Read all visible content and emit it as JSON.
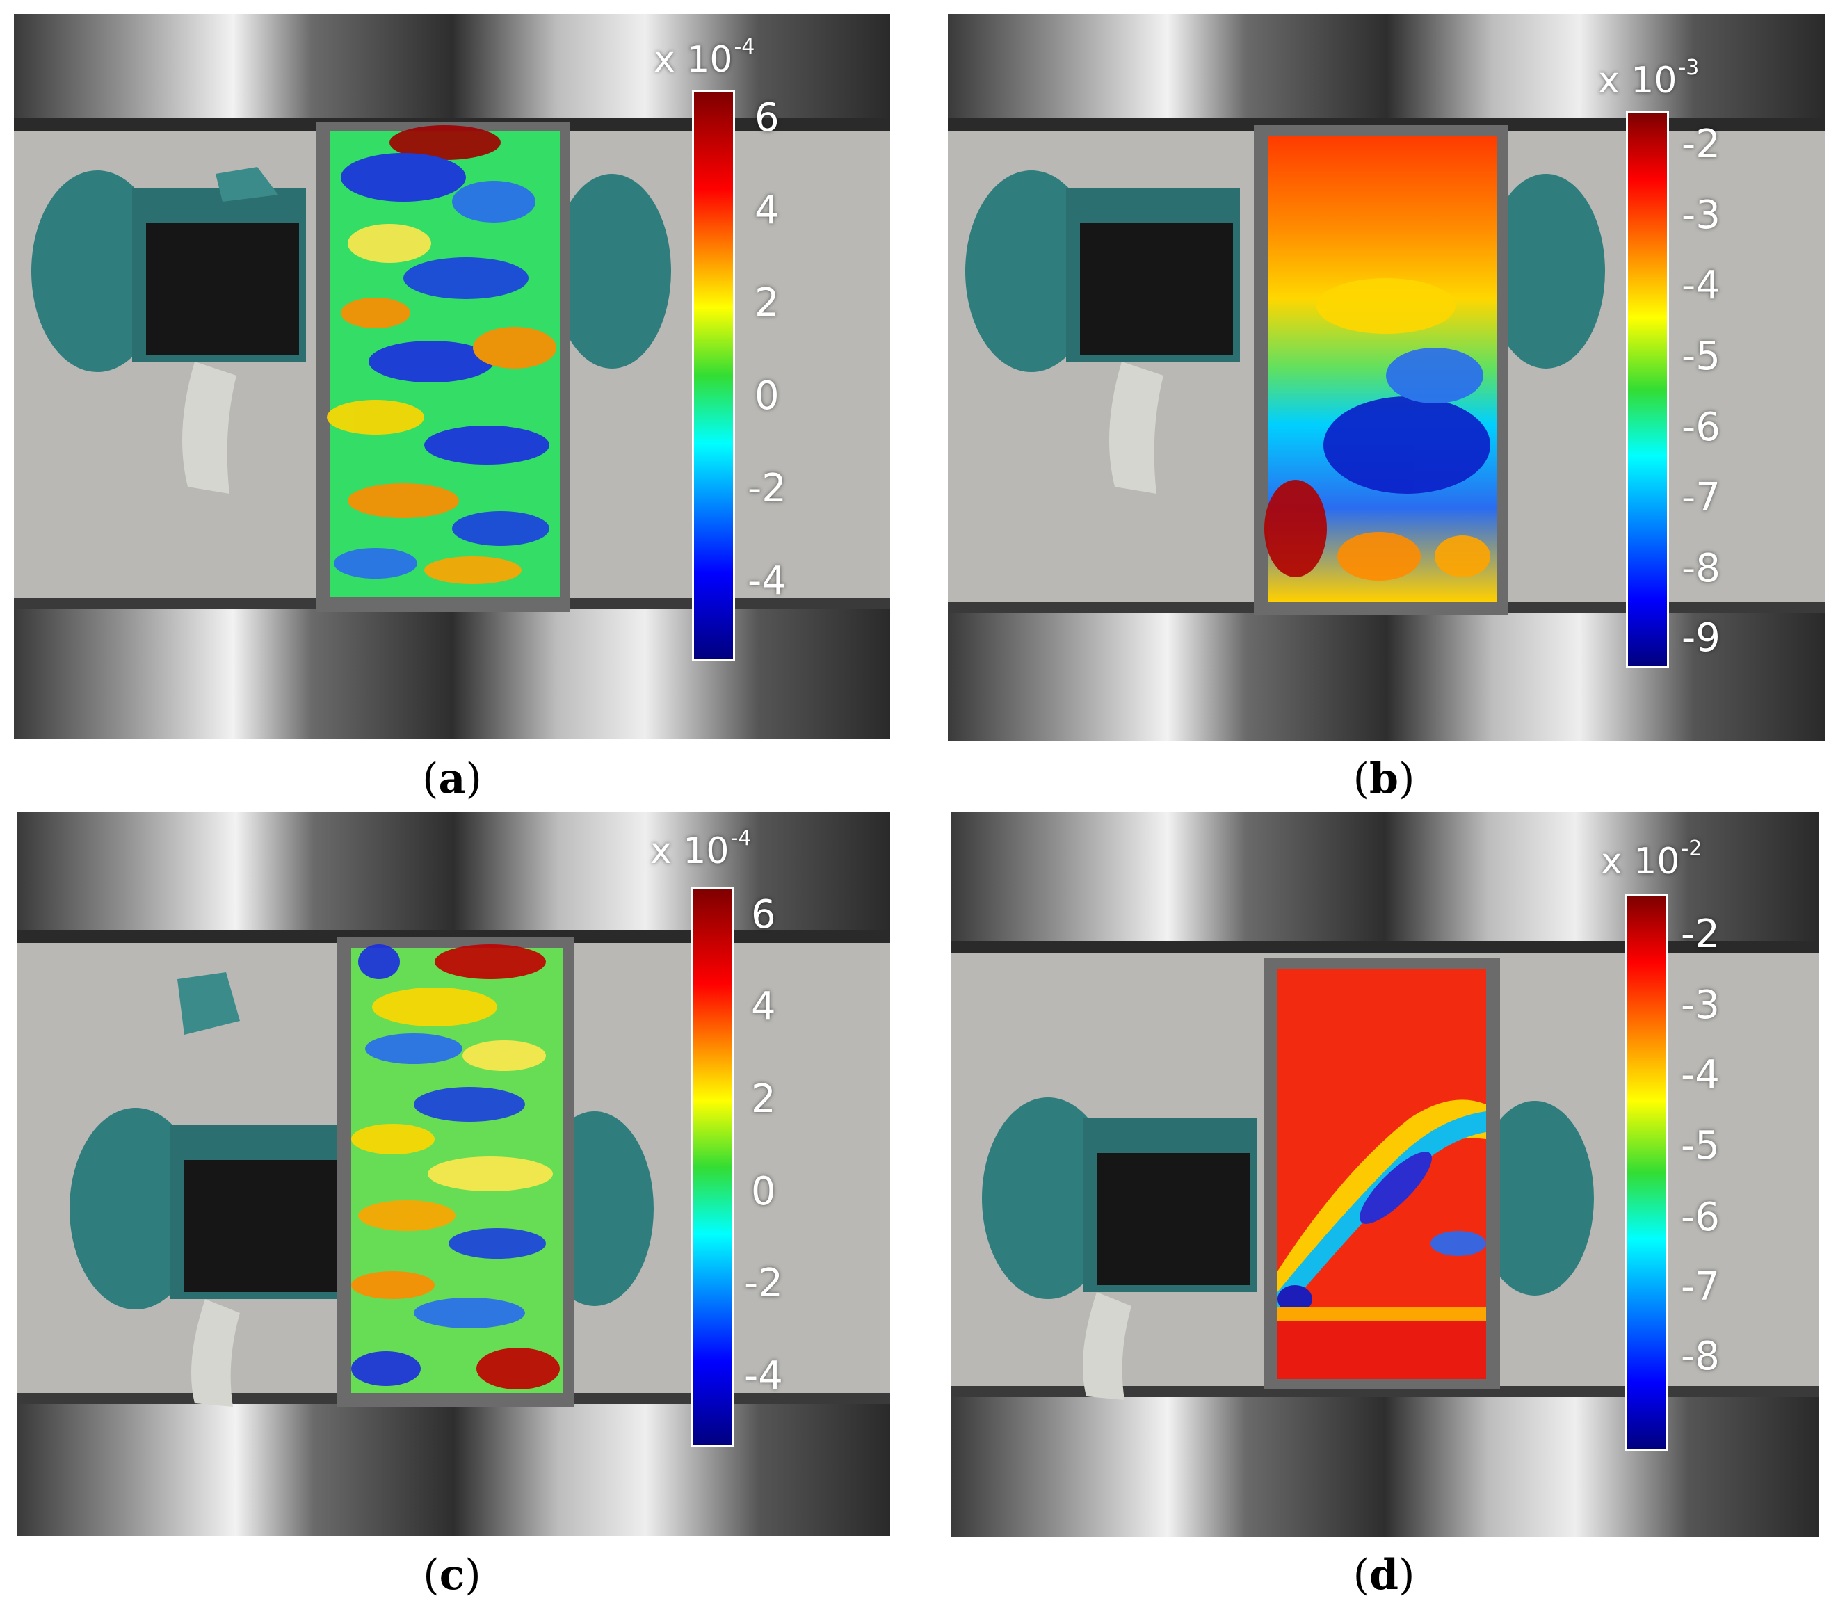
{
  "panels": [
    {
      "id": "a",
      "caption_open": "(",
      "caption_letter": "a",
      "caption_close": ")",
      "scale_prefix": "x 10",
      "scale_exponent": "-4",
      "colorbar_ticks": [
        "6",
        "4",
        "2",
        "0",
        "-2",
        "-4"
      ]
    },
    {
      "id": "b",
      "caption_open": "(",
      "caption_letter": "b",
      "caption_close": ")",
      "scale_prefix": "x 10",
      "scale_exponent": "-3",
      "colorbar_ticks": [
        "-2",
        "-3",
        "-4",
        "-5",
        "-6",
        "-7",
        "-8",
        "-9"
      ]
    },
    {
      "id": "c",
      "caption_open": "(",
      "caption_letter": "c",
      "caption_close": ")",
      "scale_prefix": "x 10",
      "scale_exponent": "-4",
      "colorbar_ticks": [
        "6",
        "4",
        "2",
        "0",
        "-2",
        "-4"
      ]
    },
    {
      "id": "d",
      "caption_open": "(",
      "caption_letter": "d",
      "caption_close": ")",
      "scale_prefix": "x 10",
      "scale_exponent": "-2",
      "colorbar_ticks": [
        "-2",
        "-3",
        "-4",
        "-5",
        "-6",
        "-7",
        "-8"
      ]
    }
  ],
  "colors": {
    "jet_dark_red": "#7f0000",
    "jet_red": "#ff0000",
    "jet_yellow": "#ffff00",
    "jet_green": "#33dd33",
    "jet_cyan": "#00ffff",
    "jet_blue": "#0000ff",
    "jet_dark_blue": "#00007f",
    "platen_steel": "#9a9a9a",
    "background_gray": "#b8b8b4",
    "fixture_teal": "#2e7b7b"
  }
}
